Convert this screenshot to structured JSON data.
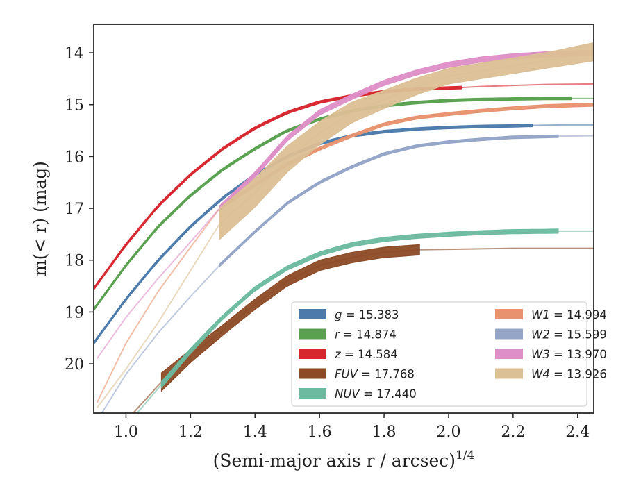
{
  "chart_data": {
    "type": "line",
    "title": "",
    "xlabel": "(Semi-major axis r / arcsec)",
    "xlabel_superscript": "1/4",
    "ylabel": "m(< r) (mag)",
    "xlim": [
      0.9,
      2.45
    ],
    "ylim": [
      20.95,
      13.45
    ],
    "y_inverted": true,
    "x_ticks": [
      "1.0",
      "1.2",
      "1.4",
      "1.6",
      "1.8",
      "2.0",
      "2.2",
      "2.4"
    ],
    "y_ticks": [
      "14",
      "15",
      "16",
      "17",
      "18",
      "19",
      "20"
    ],
    "grid": false,
    "legend_position": "lower-right",
    "legend_columns": 2,
    "series": [
      {
        "name": "g = 15.383",
        "band": "g",
        "total_mag": "15.383",
        "color": "#4c7bab",
        "x": [
          0.9,
          1.0,
          1.1,
          1.2,
          1.3,
          1.4,
          1.5,
          1.6,
          1.7,
          1.8,
          1.9,
          2.0,
          2.1,
          2.2,
          2.26,
          2.35,
          2.45
        ],
        "y": [
          19.6,
          18.75,
          18.0,
          17.35,
          16.8,
          16.35,
          16.0,
          15.75,
          15.6,
          15.52,
          15.47,
          15.44,
          15.42,
          15.41,
          15.4,
          15.39,
          15.39
        ],
        "band_x_end": 2.26,
        "thickness": 0.05
      },
      {
        "name": "r = 14.874",
        "band": "r",
        "total_mag": "14.874",
        "color": "#59a14f",
        "x": [
          0.9,
          1.0,
          1.1,
          1.2,
          1.3,
          1.4,
          1.5,
          1.6,
          1.7,
          1.8,
          1.9,
          2.0,
          2.1,
          2.2,
          2.3,
          2.4,
          2.45
        ],
        "y": [
          18.95,
          18.1,
          17.35,
          16.75,
          16.25,
          15.85,
          15.5,
          15.28,
          15.12,
          15.02,
          14.96,
          14.92,
          14.9,
          14.89,
          14.88,
          14.88,
          14.88
        ],
        "band_x_end": 2.38,
        "thickness": 0.05
      },
      {
        "name": "z = 14.584",
        "band": "z",
        "total_mag": "14.584",
        "color": "#d6272e",
        "x": [
          0.9,
          1.0,
          1.1,
          1.2,
          1.3,
          1.4,
          1.5,
          1.6,
          1.7,
          1.8,
          1.9,
          2.0,
          2.04,
          2.1,
          2.2,
          2.3,
          2.45
        ],
        "y": [
          18.55,
          17.7,
          16.95,
          16.35,
          15.85,
          15.45,
          15.15,
          14.95,
          14.83,
          14.75,
          14.7,
          14.68,
          14.67,
          14.65,
          14.63,
          14.61,
          14.6
        ],
        "band_x_end": 2.04,
        "thickness": 0.05
      },
      {
        "name": "FUV = 17.768",
        "band": "FUV",
        "total_mag": "17.768",
        "color": "#8c4a25",
        "x": [
          0.9,
          1.0,
          1.11,
          1.2,
          1.3,
          1.4,
          1.5,
          1.6,
          1.7,
          1.8,
          1.91,
          2.0,
          2.2,
          2.45
        ],
        "y": [
          22.0,
          21.1,
          20.35,
          19.85,
          19.35,
          18.85,
          18.4,
          18.1,
          17.95,
          17.85,
          17.8,
          17.79,
          17.77,
          17.77
        ],
        "band_x_start": 1.11,
        "band_x_end": 1.91,
        "thickness": [
          0.5,
          0.45,
          0.35,
          0.25,
          0.2,
          0.2,
          0.2,
          0.2,
          0.2,
          0.2,
          0.2,
          0.2,
          0.2,
          0.2
        ]
      },
      {
        "name": "NUV = 17.440",
        "band": "NUV",
        "total_mag": "17.440",
        "color": "#6cbba0",
        "x": [
          0.9,
          1.0,
          1.11,
          1.2,
          1.3,
          1.4,
          1.5,
          1.6,
          1.7,
          1.8,
          1.9,
          2.0,
          2.1,
          2.2,
          2.34,
          2.45
        ],
        "y": [
          22.0,
          21.2,
          20.4,
          19.75,
          19.1,
          18.55,
          18.15,
          17.88,
          17.7,
          17.6,
          17.54,
          17.5,
          17.47,
          17.45,
          17.44,
          17.44
        ],
        "band_x_start": 1.11,
        "band_x_end": 2.34,
        "thickness": [
          0.12,
          0.12,
          0.12,
          0.1,
          0.08,
          0.08,
          0.08,
          0.08,
          0.08,
          0.08,
          0.08,
          0.08,
          0.08,
          0.08,
          0.08,
          0.08
        ]
      },
      {
        "name": "W1 = 14.994",
        "band": "W1",
        "total_mag": "14.994",
        "color": "#e8926f",
        "x": [
          0.91,
          1.0,
          1.1,
          1.2,
          1.29,
          1.4,
          1.5,
          1.6,
          1.7,
          1.8,
          1.9,
          2.0,
          2.1,
          2.2,
          2.3,
          2.45
        ],
        "y": [
          20.75,
          19.6,
          18.6,
          17.75,
          17.0,
          16.55,
          16.15,
          15.85,
          15.6,
          15.38,
          15.25,
          15.18,
          15.12,
          15.07,
          15.03,
          15.0
        ],
        "band_x_start": 1.29,
        "band_x_end": 2.45,
        "thickness": 0.06
      },
      {
        "name": "W2 = 15.599",
        "band": "W2",
        "total_mag": "15.599",
        "color": "#94a5c8",
        "x": [
          0.91,
          1.0,
          1.1,
          1.2,
          1.29,
          1.4,
          1.5,
          1.6,
          1.7,
          1.8,
          1.9,
          2.0,
          2.1,
          2.2,
          2.34,
          2.45
        ],
        "y": [
          21.1,
          20.2,
          19.4,
          18.7,
          18.1,
          17.45,
          16.9,
          16.5,
          16.2,
          15.95,
          15.8,
          15.72,
          15.67,
          15.63,
          15.61,
          15.6
        ],
        "band_x_start": 1.29,
        "band_x_end": 2.34,
        "thickness": 0.05
      },
      {
        "name": "W3 = 13.970",
        "band": "W3",
        "total_mag": "13.970",
        "color": "#de8fc7",
        "x": [
          0.91,
          1.0,
          1.1,
          1.2,
          1.29,
          1.4,
          1.5,
          1.6,
          1.7,
          1.8,
          1.9,
          2.0,
          2.1,
          2.2,
          2.3,
          2.45
        ],
        "y": [
          19.9,
          19.1,
          18.35,
          17.65,
          17.0,
          16.35,
          15.65,
          15.15,
          14.85,
          14.58,
          14.38,
          14.23,
          14.13,
          14.07,
          14.03,
          14.0
        ],
        "band_x_start": 1.29,
        "band_x_end": 2.45,
        "thickness": 0.1
      },
      {
        "name": "W4 = 13.926",
        "band": "W4",
        "total_mag": "13.926",
        "color": "#dbbf95",
        "x": [
          0.91,
          1.0,
          1.1,
          1.2,
          1.29,
          1.4,
          1.5,
          1.6,
          1.7,
          1.8,
          1.9,
          2.0,
          2.1,
          2.2,
          2.3,
          2.45
        ],
        "y": [
          20.85,
          20.1,
          19.2,
          18.2,
          17.3,
          16.7,
          16.05,
          15.55,
          15.15,
          14.9,
          14.65,
          14.45,
          14.35,
          14.25,
          14.15,
          13.98
        ],
        "band_x_start": 1.29,
        "band_x_end": 2.45,
        "thickness": [
          0.3,
          0.3,
          0.35,
          0.45,
          0.6,
          0.55,
          0.5,
          0.45,
          0.4,
          0.35,
          0.32,
          0.3,
          0.3,
          0.3,
          0.3,
          0.35
        ]
      }
    ]
  }
}
